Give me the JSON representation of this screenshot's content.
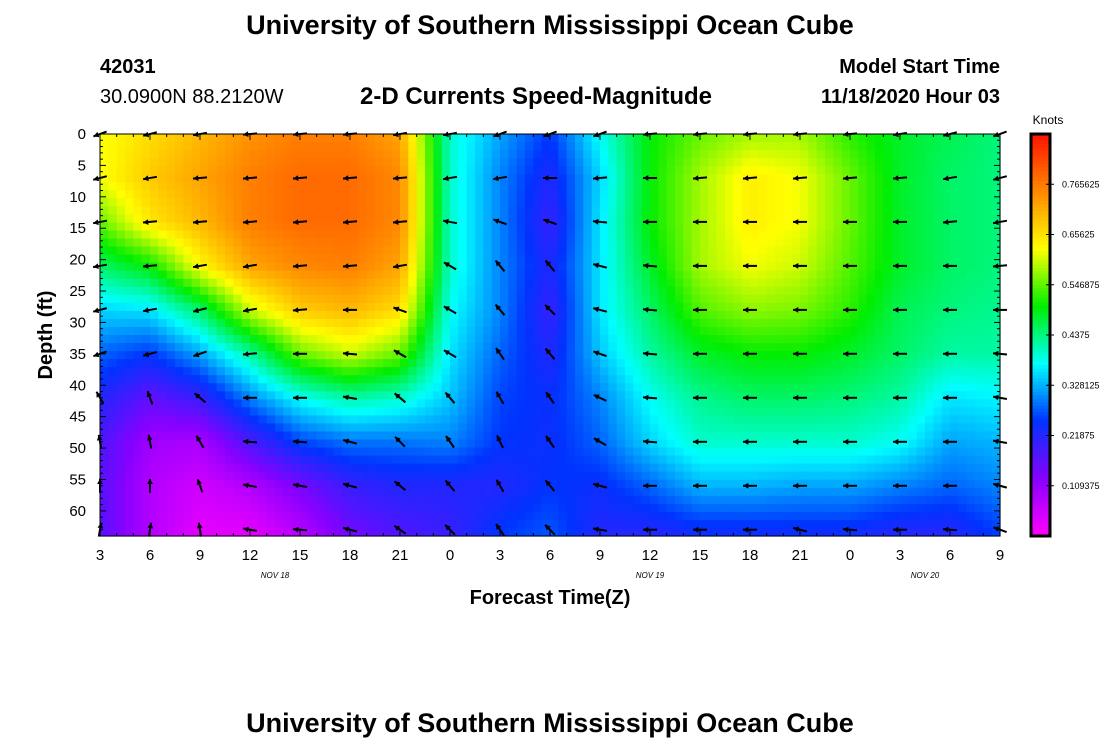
{
  "header": {
    "title": "University of Southern Mississippi Ocean Cube",
    "footer_title": "University of Southern Mississippi Ocean Cube",
    "station_id": "42031",
    "station_location": "30.0900N 88.2120W",
    "plot_title": "2-D Currents Speed-Magnitude",
    "model_start_label": "Model Start Time",
    "model_start_value": "11/18/2020 Hour 03"
  },
  "chart_data": {
    "type": "heatmap",
    "title": "2-D Currents Speed-Magnitude",
    "xlabel": "Forecast Time(Z)",
    "ylabel": "Depth (ft)",
    "x_tick_labels": [
      "3",
      "6",
      "9",
      "12",
      "15",
      "18",
      "21",
      "0",
      "3",
      "6",
      "9",
      "12",
      "15",
      "18",
      "21",
      "0",
      "3",
      "6",
      "9"
    ],
    "x_range_hours": [
      0,
      54
    ],
    "date_labels": [
      {
        "label": "NOV 18",
        "hour": 10.5
      },
      {
        "label": "NOV 19",
        "hour": 33
      },
      {
        "label": "NOV 20",
        "hour": 49.5
      }
    ],
    "y_tick_labels": [
      "0",
      "5",
      "10",
      "15",
      "20",
      "25",
      "30",
      "35",
      "40",
      "45",
      "50",
      "55",
      "60"
    ],
    "ylim": [
      0,
      64
    ],
    "y_inverted": true,
    "colorbar": {
      "unit": "Knots",
      "range": [
        0,
        0.875
      ],
      "tick_labels": [
        "0.765625",
        "0.65625",
        "0.546875",
        "0.4375",
        "0.328125",
        "0.21875",
        "0.109375"
      ],
      "tick_values": [
        0.765625,
        0.65625,
        0.546875,
        0.4375,
        0.328125,
        0.21875,
        0.109375
      ],
      "colors": [
        "#ff00ff",
        "#8800ff",
        "#0033ff",
        "#00ffff",
        "#00ee00",
        "#ffff00",
        "#ff8800",
        "#ff1100"
      ]
    },
    "grid_hours": [
      0,
      3,
      6,
      9,
      12,
      15,
      18,
      21,
      24,
      27,
      30,
      33,
      36,
      39,
      42,
      45,
      48,
      51,
      54
    ],
    "grid_depths": [
      0,
      7,
      14,
      21,
      28,
      35,
      42,
      49,
      56,
      63
    ],
    "speed_knots": [
      [
        0.62,
        0.62,
        0.55,
        0.45,
        0.35,
        0.28,
        0.22,
        0.18,
        0.17,
        0.17
      ],
      [
        0.66,
        0.68,
        0.65,
        0.5,
        0.36,
        0.25,
        0.16,
        0.1,
        0.08,
        0.08
      ],
      [
        0.7,
        0.72,
        0.7,
        0.63,
        0.45,
        0.32,
        0.2,
        0.09,
        0.05,
        0.03
      ],
      [
        0.74,
        0.76,
        0.76,
        0.72,
        0.6,
        0.42,
        0.3,
        0.18,
        0.08,
        0.03
      ],
      [
        0.76,
        0.78,
        0.78,
        0.75,
        0.68,
        0.55,
        0.38,
        0.26,
        0.14,
        0.08
      ],
      [
        0.76,
        0.78,
        0.78,
        0.76,
        0.7,
        0.6,
        0.42,
        0.29,
        0.2,
        0.15
      ],
      [
        0.72,
        0.75,
        0.75,
        0.72,
        0.66,
        0.55,
        0.4,
        0.29,
        0.22,
        0.18
      ],
      [
        0.4,
        0.4,
        0.4,
        0.4,
        0.38,
        0.36,
        0.34,
        0.3,
        0.22,
        0.2
      ],
      [
        0.32,
        0.3,
        0.3,
        0.3,
        0.3,
        0.28,
        0.26,
        0.25,
        0.22,
        0.25
      ],
      [
        0.25,
        0.22,
        0.2,
        0.22,
        0.2,
        0.22,
        0.24,
        0.24,
        0.25,
        0.27
      ],
      [
        0.38,
        0.35,
        0.36,
        0.36,
        0.36,
        0.34,
        0.3,
        0.28,
        0.24,
        0.22
      ],
      [
        0.5,
        0.5,
        0.5,
        0.48,
        0.45,
        0.42,
        0.38,
        0.35,
        0.28,
        0.22
      ],
      [
        0.55,
        0.58,
        0.58,
        0.58,
        0.54,
        0.48,
        0.43,
        0.4,
        0.33,
        0.24
      ],
      [
        0.58,
        0.64,
        0.64,
        0.62,
        0.57,
        0.5,
        0.45,
        0.4,
        0.33,
        0.24
      ],
      [
        0.58,
        0.62,
        0.62,
        0.6,
        0.56,
        0.5,
        0.45,
        0.4,
        0.32,
        0.24
      ],
      [
        0.52,
        0.55,
        0.55,
        0.54,
        0.52,
        0.48,
        0.44,
        0.4,
        0.32,
        0.24
      ],
      [
        0.48,
        0.48,
        0.48,
        0.48,
        0.46,
        0.45,
        0.42,
        0.38,
        0.3,
        0.22
      ],
      [
        0.46,
        0.45,
        0.45,
        0.45,
        0.44,
        0.42,
        0.36,
        0.32,
        0.28,
        0.22
      ],
      [
        0.44,
        0.44,
        0.44,
        0.44,
        0.43,
        0.42,
        0.37,
        0.33,
        0.3,
        0.26
      ]
    ],
    "arrow_directions_deg": [
      [
        200,
        195,
        190,
        190,
        195,
        200,
        120,
        100,
        90,
        80
      ],
      [
        195,
        190,
        185,
        185,
        190,
        195,
        110,
        100,
        90,
        80
      ],
      [
        190,
        185,
        185,
        190,
        195,
        200,
        140,
        120,
        110,
        100
      ],
      [
        185,
        185,
        185,
        190,
        190,
        185,
        180,
        175,
        170,
        170
      ],
      [
        185,
        185,
        185,
        185,
        185,
        180,
        180,
        175,
        170,
        175
      ],
      [
        185,
        185,
        185,
        185,
        180,
        175,
        170,
        165,
        165,
        165
      ],
      [
        190,
        185,
        185,
        190,
        160,
        150,
        140,
        135,
        140,
        145
      ],
      [
        190,
        190,
        170,
        150,
        150,
        150,
        130,
        125,
        130,
        135
      ],
      [
        200,
        190,
        160,
        130,
        130,
        125,
        120,
        115,
        120,
        125
      ],
      [
        200,
        180,
        160,
        130,
        135,
        130,
        125,
        125,
        130,
        135
      ],
      [
        200,
        185,
        175,
        165,
        165,
        160,
        155,
        150,
        165,
        170
      ],
      [
        185,
        180,
        180,
        175,
        175,
        175,
        175,
        175,
        180,
        180
      ],
      [
        185,
        185,
        180,
        180,
        180,
        180,
        180,
        180,
        180,
        180
      ],
      [
        185,
        185,
        180,
        180,
        180,
        180,
        180,
        180,
        180,
        180
      ],
      [
        185,
        185,
        180,
        180,
        180,
        180,
        180,
        180,
        180,
        165
      ],
      [
        185,
        185,
        180,
        180,
        180,
        180,
        180,
        180,
        180,
        175
      ],
      [
        190,
        185,
        180,
        180,
        180,
        180,
        180,
        180,
        180,
        180
      ],
      [
        195,
        190,
        185,
        180,
        180,
        180,
        180,
        180,
        180,
        175
      ],
      [
        200,
        195,
        190,
        185,
        180,
        175,
        170,
        170,
        165,
        160
      ]
    ]
  }
}
